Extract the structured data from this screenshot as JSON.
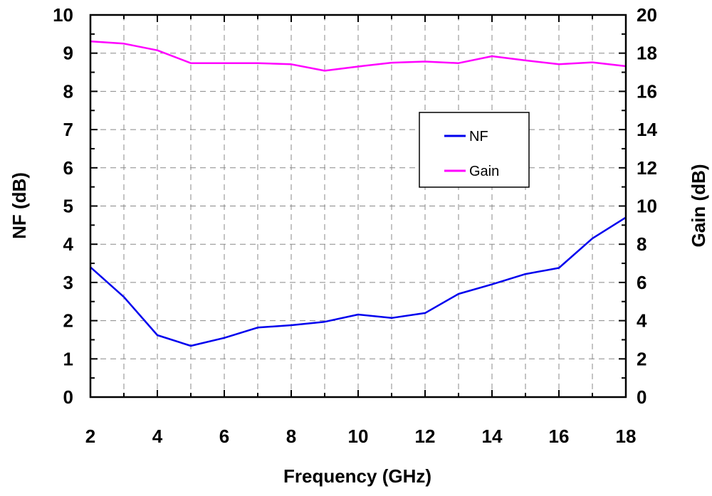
{
  "chart_data": {
    "type": "line",
    "title": "",
    "xlabel": "Frequency (GHz)",
    "ylabel": "NF (dB)",
    "y2label": "Gain (dB)",
    "xlim": [
      2,
      18
    ],
    "ylim": [
      0,
      10
    ],
    "y2lim": [
      0,
      20
    ],
    "x_ticks": [
      2,
      4,
      6,
      8,
      10,
      12,
      14,
      16,
      18
    ],
    "y_ticks": [
      0,
      1,
      2,
      3,
      4,
      5,
      6,
      7,
      8,
      9,
      10
    ],
    "y2_ticks": [
      0,
      2,
      4,
      6,
      8,
      10,
      12,
      14,
      16,
      18,
      20
    ],
    "x_gridlines": [
      3,
      4,
      5,
      6,
      7,
      8,
      9,
      10,
      11,
      12,
      13,
      14,
      15,
      16,
      17
    ],
    "y_gridlines": [
      1,
      2,
      3,
      4,
      5,
      6,
      7,
      8,
      9
    ],
    "grid": true,
    "grid_style": "dashed",
    "legend_position": "center-right",
    "series": [
      {
        "name": "NF",
        "axis": "left",
        "color": "#0000ee",
        "x": [
          2,
          3,
          4,
          5,
          6,
          7,
          8,
          9,
          10,
          11,
          12,
          13,
          14,
          15,
          16,
          17,
          18
        ],
        "values": [
          3.4,
          2.62,
          1.62,
          1.34,
          1.55,
          1.82,
          1.88,
          1.97,
          2.16,
          2.07,
          2.2,
          2.7,
          2.95,
          3.22,
          3.38,
          4.15,
          4.7
        ]
      },
      {
        "name": "Gain",
        "axis": "right",
        "color": "#ff00ff",
        "x": [
          2,
          3,
          4,
          5,
          6,
          7,
          8,
          9,
          10,
          11,
          12,
          13,
          14,
          15,
          16,
          17,
          18
        ],
        "values": [
          18.62,
          18.5,
          18.15,
          17.48,
          17.48,
          17.48,
          17.42,
          17.08,
          17.3,
          17.5,
          17.56,
          17.48,
          17.84,
          17.62,
          17.42,
          17.52,
          17.32
        ]
      }
    ]
  }
}
